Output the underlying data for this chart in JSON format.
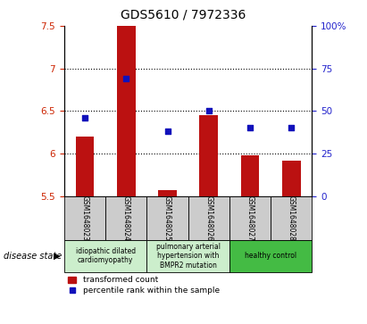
{
  "title": "GDS5610 / 7972336",
  "samples": [
    "GSM1648023",
    "GSM1648024",
    "GSM1648025",
    "GSM1648026",
    "GSM1648027",
    "GSM1648028"
  ],
  "transformed_count": [
    6.2,
    7.78,
    5.57,
    6.45,
    5.98,
    5.92
  ],
  "percentile_rank": [
    46,
    69,
    38,
    50,
    40,
    40
  ],
  "ylim_left": [
    5.5,
    7.5
  ],
  "ylim_right": [
    0,
    100
  ],
  "yticks_left": [
    5.5,
    6.0,
    6.5,
    7.0,
    7.5
  ],
  "yticks_right": [
    0,
    25,
    50,
    75,
    100
  ],
  "ytick_labels_left": [
    "5.5",
    "6",
    "6.5",
    "7",
    "7.5"
  ],
  "ytick_labels_right": [
    "0",
    "25",
    "50",
    "75",
    "100%"
  ],
  "bar_color": "#bb1111",
  "dot_color": "#1111bb",
  "bar_bottom": 5.5,
  "group_labels": [
    "idiopathic dilated\ncardiomyopathy",
    "pulmonary arterial\nhypertension with\nBMPR2 mutation",
    "healthy control"
  ],
  "group_colors": [
    "#cceecc",
    "#cceecc",
    "#44bb44"
  ],
  "group_ranges": [
    [
      0,
      1
    ],
    [
      2,
      3
    ],
    [
      4,
      5
    ]
  ],
  "disease_state_label": "disease state",
  "legend_bar_label": "transformed count",
  "legend_dot_label": "percentile rank within the sample",
  "bar_width": 0.45,
  "sample_box_color": "#cccccc",
  "tick_color_left": "#cc2200",
  "tick_color_right": "#2222cc",
  "title_fontsize": 10,
  "tick_fontsize": 7.5,
  "label_fontsize": 6,
  "disease_fontsize": 5.5
}
